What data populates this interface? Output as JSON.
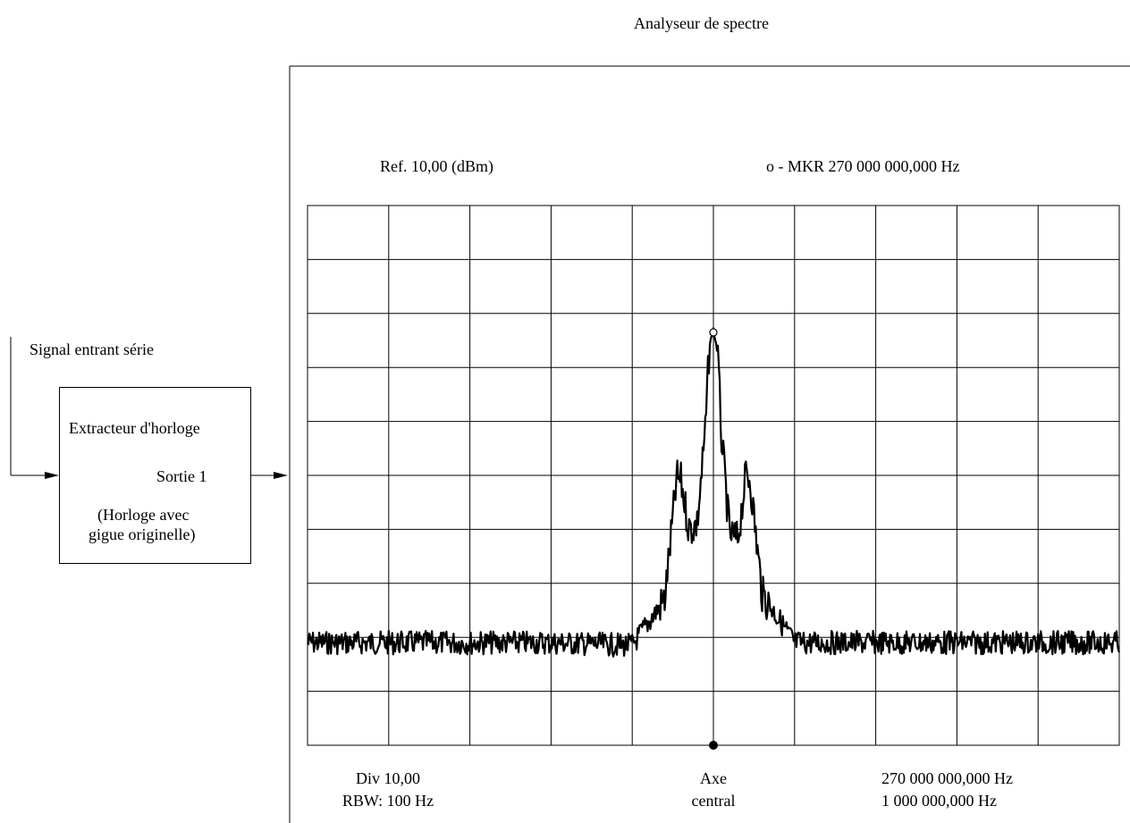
{
  "title": "Analyseur de spectre",
  "input": {
    "signal_label": "Signal entrant série"
  },
  "extractor": {
    "title": "Extracteur d'horloge",
    "output_label": "Sortie 1",
    "note_line1": "(Horloge avec",
    "note_line2": "gigue originelle)"
  },
  "analyzer": {
    "ref_label": "Ref. 10,00 (dBm)",
    "marker_label": "o - MKR 270 000 000,000 Hz",
    "div_label": "Div 10,00",
    "rbw_label": "RBW: 100 Hz",
    "axis_line1": "Axe",
    "axis_line2": "central",
    "center_freq": "270 000 000,000 Hz",
    "span": "1 000 000,000 Hz"
  },
  "chart_data": {
    "type": "line",
    "grid": {
      "columns": 10,
      "rows": 10
    },
    "ref_level_dbm": 10,
    "div_db": 10,
    "center_hz": 270000000,
    "span_hz": 1000000,
    "noise_floor_div": 8.15,
    "series": [
      {
        "x": [
          -5.0,
          -4.0,
          -3.0,
          -2.0,
          -1.0,
          -0.6,
          -0.45,
          -0.4,
          -0.3,
          -0.2,
          -0.1,
          -0.05,
          0.0,
          0.05,
          0.1,
          0.2,
          0.3,
          0.4,
          0.45,
          0.6,
          1.0,
          2.0,
          3.0,
          4.0,
          5.0
        ],
        "y_div": [
          8.1,
          8.1,
          8.1,
          8.1,
          8.15,
          7.3,
          5.05,
          5.1,
          6.0,
          5.9,
          4.2,
          2.6,
          2.3,
          2.7,
          4.3,
          6.1,
          6.2,
          5.0,
          5.05,
          7.2,
          8.1,
          8.1,
          8.1,
          8.1,
          8.1
        ]
      }
    ],
    "marker": {
      "x": 0,
      "y_div": 2.35
    }
  }
}
